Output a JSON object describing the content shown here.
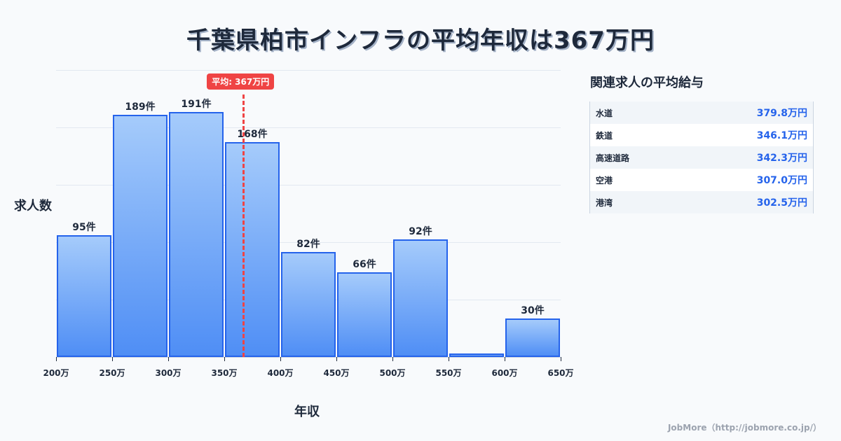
{
  "title": "千葉県柏市インフラの平均年収は367万円",
  "chart_data": {
    "type": "bar",
    "title": "千葉県柏市インフラの平均年収は367万円",
    "xlabel": "年収",
    "ylabel": "求人数",
    "categories": [
      "200-250万",
      "250-300万",
      "300-350万",
      "350-400万",
      "400-450万",
      "450-500万",
      "500-550万",
      "550-600万",
      "600-650万"
    ],
    "bin_edges": [
      200,
      250,
      300,
      350,
      400,
      450,
      500,
      550,
      600,
      650
    ],
    "values": [
      95,
      189,
      191,
      168,
      82,
      66,
      92,
      3,
      30
    ],
    "value_labels": [
      "95件",
      "189件",
      "191件",
      "168件",
      "82件",
      "66件",
      "92件",
      "",
      "30件"
    ],
    "x_tick_labels": [
      "200万",
      "250万",
      "300万",
      "350万",
      "400万",
      "450万",
      "500万",
      "550万",
      "600万",
      "650万"
    ],
    "ylim": [
      0,
      224
    ],
    "grid": true,
    "annotations": [
      {
        "type": "vline",
        "x": 367,
        "label": "平均: 367万円",
        "color": "#ef4444"
      }
    ],
    "bar_color": "#4f8ef5",
    "bar_border": "#2563eb"
  },
  "avg_badge": "平均: 367万円",
  "axis": {
    "ylabel": "求人数",
    "xlabel": "年収"
  },
  "sidebar": {
    "title": "関連求人の平均給与",
    "rows": [
      {
        "name": "水道",
        "value": "379.8万円"
      },
      {
        "name": "鉄道",
        "value": "346.1万円"
      },
      {
        "name": "高速道路",
        "value": "342.3万円"
      },
      {
        "name": "空港",
        "value": "307.0万円"
      },
      {
        "name": "港湾",
        "value": "302.5万円"
      }
    ]
  },
  "footer": "JobMore（http://jobmore.co.jp/）"
}
